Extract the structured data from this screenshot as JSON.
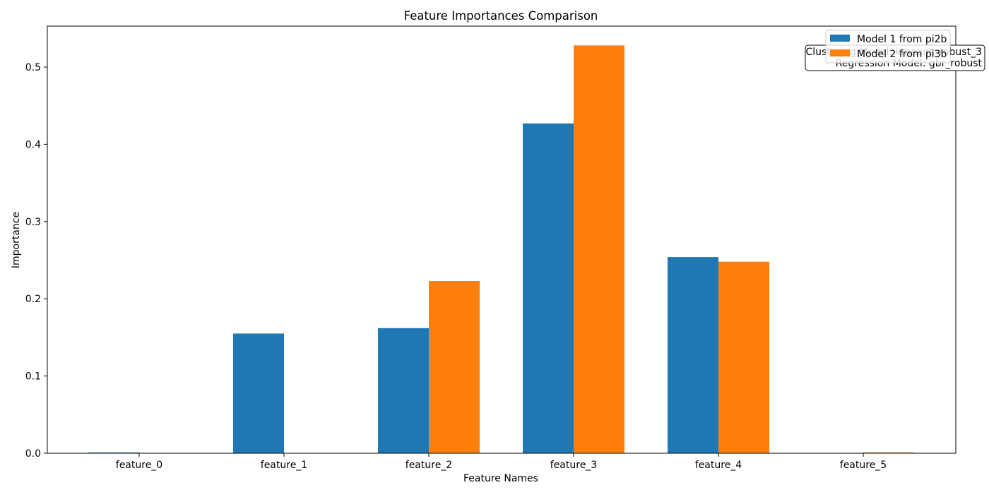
{
  "chart_data": {
    "type": "bar",
    "title": "Feature Importances Comparison",
    "xlabel": "Feature Names",
    "ylabel": "Importance",
    "categories": [
      "feature_0",
      "feature_1",
      "feature_2",
      "feature_3",
      "feature_4",
      "feature_5"
    ],
    "series": [
      {
        "name": "Model 1 from pi2b",
        "color": "#1f77b4",
        "values": [
          0.001,
          0.155,
          0.162,
          0.427,
          0.254,
          0.0
        ]
      },
      {
        "name": "Model 2 from pi3b",
        "color": "#ff7f0e",
        "values": [
          0.0,
          0.0,
          0.223,
          0.528,
          0.248,
          0.001
        ]
      }
    ],
    "ylim": [
      0,
      0.553
    ],
    "yticks": [
      0.0,
      0.1,
      0.2,
      0.3,
      0.4,
      0.5
    ],
    "ytick_labels": [
      "0.0",
      "0.1",
      "0.2",
      "0.3",
      "0.4",
      "0.5"
    ],
    "grid": false,
    "legend_position": "top-right",
    "annotation": {
      "line1": "Clustering Model: kmeans_robust_3",
      "line2": "Regression Model: gbr_robust"
    }
  }
}
